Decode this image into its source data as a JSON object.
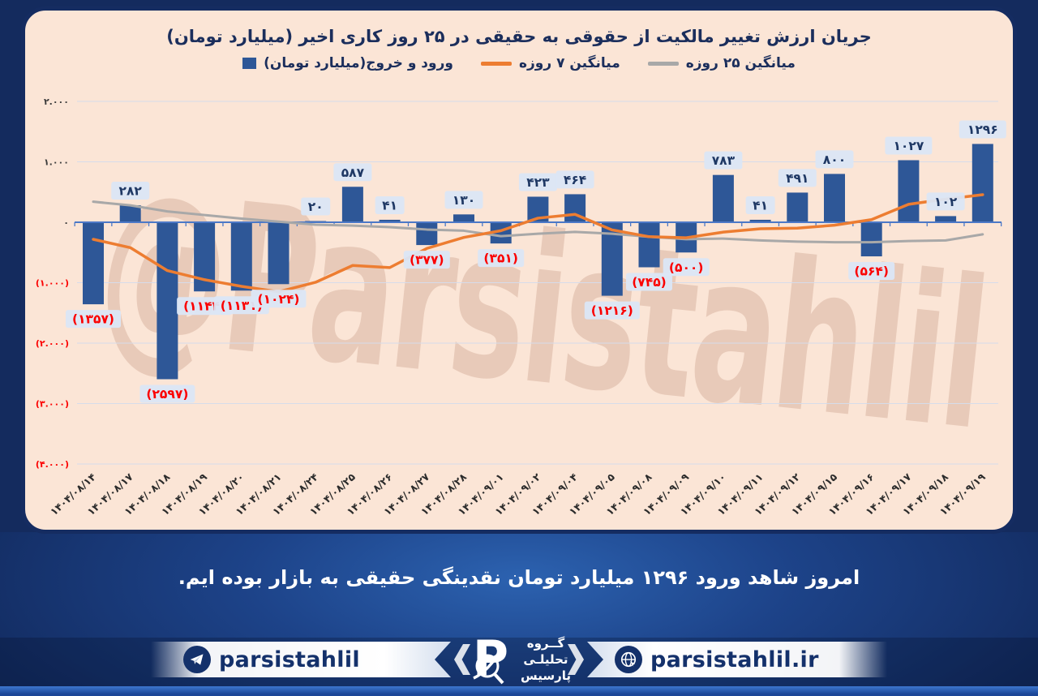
{
  "title": "جریان ارزش تغییر مالکیت از حقوقی به حقیقی در ۲۵ روز کاری اخیر (میلیارد تومان)",
  "legend": {
    "bars_label": "ورود و خروج(میلیارد تومان)",
    "ma7_label": "میانگین ۷ روزه",
    "ma25_label": "میانگین ۲۵ روزه"
  },
  "watermark": "@Parsistahlil",
  "message": "امروز شاهد ورود ۱۲۹۶ میلیارد تومان نقدینگی حقیقی به بازار بوده ایم.",
  "footer": {
    "telegram_handle": "parsistahlil",
    "website": "parsistahlil.ir",
    "logo_letter": "P",
    "brand_name_lines": [
      "گــروه",
      "تحلیلـی",
      "پارسیس"
    ]
  },
  "colors": {
    "bars": "#2e5797",
    "ma7": "#ed7d31",
    "ma25": "#a8a8a8",
    "axis": "#4c79c7",
    "grid": "#d6dcea",
    "positive_label": "#1f3864",
    "negative_label": "#fb0000",
    "label_chip_bg": "#dbe6f6",
    "panel_bg": "#fbe5d6",
    "frame_bg": "#142b5e"
  },
  "chart_data": {
    "type": "bar",
    "title": "جریان ارزش تغییر مالکیت از حقوقی به حقیقی در ۲۵ روز کاری اخیر (میلیارد تومان)",
    "grid": true,
    "legend_position": "top",
    "ylim": [
      -4000,
      2000
    ],
    "yticks": {
      "values": [
        2000,
        1000,
        0,
        -1000,
        -2000,
        -3000,
        -4000
      ],
      "labels": [
        "۲.۰۰۰",
        "۱.۰۰۰",
        "۰",
        "(۱.۰۰۰)",
        "(۲.۰۰۰)",
        "(۳.۰۰۰)",
        "(۴.۰۰۰)"
      ]
    },
    "categories": [
      "۱۴۰۴/۰۸/۱۴",
      "۱۴۰۴/۰۸/۱۷",
      "۱۴۰۴/۰۸/۱۸",
      "۱۴۰۴/۰۸/۱۹",
      "۱۴۰۴/۰۸/۲۰",
      "۱۴۰۴/۰۸/۲۱",
      "۱۴۰۴/۰۸/۲۴",
      "۱۴۰۴/۰۸/۲۵",
      "۱۴۰۴/۰۸/۲۶",
      "۱۴۰۴/۰۸/۲۷",
      "۱۴۰۴/۰۸/۲۸",
      "۱۴۰۴/۰۹/۰۱",
      "۱۴۰۴/۰۹/۰۲",
      "۱۴۰۴/۰۹/۰۴",
      "۱۴۰۴/۰۹/۰۵",
      "۱۴۰۴/۰۹/۰۸",
      "۱۴۰۴/۰۹/۰۹",
      "۱۴۰۴/۰۹/۱۰",
      "۱۴۰۴/۰۹/۱۱",
      "۱۴۰۴/۰۹/۱۲",
      "۱۴۰۴/۰۹/۱۵",
      "۱۴۰۴/۰۹/۱۶",
      "۱۴۰۴/۰۹/۱۷",
      "۱۴۰۴/۰۹/۱۸",
      "۱۴۰۴/۰۹/۱۹"
    ],
    "series": [
      {
        "name": "ورود و خروج(میلیارد تومان)",
        "type": "bar",
        "values": [
          -1357,
          282,
          -2597,
          -1144,
          -1131,
          -1024,
          20,
          587,
          41,
          -377,
          130,
          -351,
          423,
          464,
          -1216,
          -745,
          -500,
          783,
          41,
          491,
          800,
          -564,
          1027,
          102,
          1296
        ],
        "labels": [
          "(۱۳۵۷)",
          "۲۸۲",
          "(۲۵۹۷)",
          "(۱۱۴۴)",
          "(۱۱۳۱)",
          "(۱۰۲۴)",
          "۲۰",
          "۵۸۷",
          "۴۱",
          "(۳۷۷)",
          "۱۳۰",
          "(۳۵۱)",
          "۴۲۳",
          "۴۶۴",
          "(۱۲۱۶)",
          "(۷۴۵)",
          "(۵۰۰)",
          "۷۸۳",
          "۴۱",
          "۴۹۱",
          "۸۰۰",
          "(۵۶۴)",
          "۱۰۲۷",
          "۱۰۲",
          "۱۲۹۶"
        ]
      },
      {
        "name": "میانگین ۷ روزه",
        "type": "line",
        "values": [
          -282,
          -420,
          -800,
          -950,
          -1060,
          -1150,
          -993,
          -715,
          -750,
          -433,
          -251,
          -139,
          68,
          131,
          -127,
          -239,
          -256,
          -163,
          -107,
          -97,
          -49,
          44,
          297,
          383,
          456
        ]
      },
      {
        "name": "میانگین ۲۵ روزه",
        "type": "line",
        "values": [
          340,
          280,
          180,
          120,
          60,
          10,
          -40,
          -55,
          -80,
          -120,
          -140,
          -230,
          -190,
          -160,
          -190,
          -240,
          -280,
          -270,
          -300,
          -320,
          -330,
          -330,
          -310,
          -300,
          -200
        ]
      }
    ]
  }
}
